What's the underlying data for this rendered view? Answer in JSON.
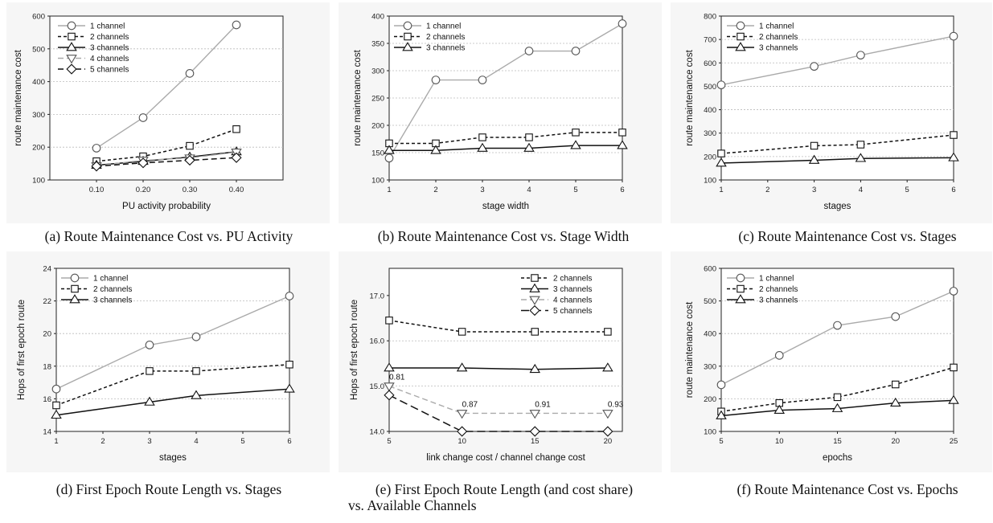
{
  "charts": [
    {
      "type": "line",
      "title": "",
      "caption": "(a) Route Maintenance Cost vs. PU Activity",
      "xlabel": "PU activity probability",
      "ylabel": "route maintenance cost",
      "x_ticks": [
        "0.10",
        "0.20",
        "0.30",
        "0.40"
      ],
      "x_values": [
        0.1,
        0.2,
        0.3,
        0.4
      ],
      "xlim": [
        0.0,
        0.5
      ],
      "ylim": [
        100,
        600
      ],
      "y_ticks": [
        100,
        200,
        300,
        400,
        500,
        600
      ],
      "legend_position": "top-left",
      "grid": "horizontal",
      "series": [
        {
          "name": "1 channel",
          "values": [
            197,
            290,
            425,
            573
          ],
          "marker": "circle",
          "dash": "solid",
          "color": "#aaaaaa"
        },
        {
          "name": "2 channels",
          "values": [
            157,
            172,
            204,
            255
          ],
          "marker": "square",
          "dash": "dotted",
          "color": "#111111"
        },
        {
          "name": "3 channels",
          "values": [
            145,
            157,
            170,
            186
          ],
          "marker": "triangle",
          "dash": "solid",
          "color": "#111111"
        },
        {
          "name": "4 channels",
          "values": [
            143,
            160,
            167,
            185
          ],
          "marker": "triangle-down",
          "dash": "dashed",
          "color": "#aaaaaa"
        },
        {
          "name": "5 channels",
          "values": [
            142,
            152,
            160,
            168
          ],
          "marker": "diamond",
          "dash": "dashed",
          "color": "#111111"
        }
      ]
    },
    {
      "type": "line",
      "title": "",
      "caption": "(b) Route Maintenance Cost vs. Stage Width",
      "xlabel": "stage width",
      "ylabel": "route maintenance cost",
      "x_ticks": [
        "1",
        "2",
        "3",
        "4",
        "5",
        "6"
      ],
      "x_values": [
        1,
        2,
        3,
        4,
        5,
        6
      ],
      "xlim": [
        1,
        6
      ],
      "ylim": [
        100,
        400
      ],
      "y_ticks": [
        100,
        150,
        200,
        250,
        300,
        350,
        400
      ],
      "legend_position": "top-left",
      "grid": "horizontal",
      "series": [
        {
          "name": "1 channel",
          "values": [
            140,
            283,
            283,
            336,
            336,
            386
          ],
          "marker": "circle",
          "dash": "solid",
          "color": "#aaaaaa"
        },
        {
          "name": "2 channels",
          "values": [
            167,
            167,
            178,
            178,
            187,
            187
          ],
          "marker": "square",
          "dash": "dotted",
          "color": "#111111"
        },
        {
          "name": "3 channels",
          "values": [
            154,
            154,
            158,
            158,
            163,
            163
          ],
          "marker": "triangle",
          "dash": "solid",
          "color": "#111111"
        }
      ]
    },
    {
      "type": "line",
      "title": "",
      "caption": "(c) Route Maintenance Cost vs. Stages",
      "xlabel": "stages",
      "ylabel": "route maintenance cost",
      "x_ticks": [
        "1",
        "2",
        "3",
        "4",
        "5",
        "6"
      ],
      "x_values": [
        1,
        3,
        4,
        6
      ],
      "xlim": [
        1,
        6
      ],
      "ylim": [
        100,
        800
      ],
      "y_ticks": [
        100,
        200,
        300,
        400,
        500,
        600,
        700,
        800
      ],
      "legend_position": "top-left",
      "grid": "horizontal",
      "series": [
        {
          "name": "1 channel",
          "values": [
            506,
            585,
            633,
            714
          ],
          "marker": "circle",
          "dash": "solid",
          "color": "#aaaaaa"
        },
        {
          "name": "2 channels",
          "values": [
            213,
            246,
            251,
            292
          ],
          "marker": "square",
          "dash": "dotted",
          "color": "#111111"
        },
        {
          "name": "3 channels",
          "values": [
            172,
            184,
            192,
            195
          ],
          "marker": "triangle",
          "dash": "solid",
          "color": "#111111"
        }
      ]
    },
    {
      "type": "line",
      "title": "",
      "caption": "(d) First Epoch Route Length vs. Stages",
      "xlabel": "stages",
      "ylabel": "Hops of first epoch route",
      "x_ticks": [
        "1",
        "2",
        "3",
        "4",
        "5",
        "6"
      ],
      "x_values": [
        1,
        3,
        4,
        6
      ],
      "xlim": [
        1,
        6
      ],
      "ylim": [
        14,
        24
      ],
      "y_ticks": [
        14,
        16,
        18,
        20,
        22,
        24
      ],
      "legend_position": "top-left",
      "grid": "horizontal",
      "series": [
        {
          "name": "1 channel",
          "values": [
            16.6,
            19.3,
            19.8,
            22.3
          ],
          "marker": "circle",
          "dash": "solid",
          "color": "#aaaaaa"
        },
        {
          "name": "2 channels",
          "values": [
            15.6,
            17.7,
            17.7,
            18.1
          ],
          "marker": "square",
          "dash": "dotted",
          "color": "#111111"
        },
        {
          "name": "3 channels",
          "values": [
            15.0,
            15.8,
            16.2,
            16.6
          ],
          "marker": "triangle",
          "dash": "solid",
          "color": "#111111"
        }
      ]
    },
    {
      "type": "line",
      "title": "",
      "caption": "(e) First Epoch Route Length (and cost share) vs. Available Channels",
      "xlabel": "link change cost / channel change cost",
      "ylabel": "Hops of first epoch route",
      "x_ticks": [
        "5",
        "10",
        "15",
        "20"
      ],
      "x_values": [
        5,
        10,
        15,
        20
      ],
      "xlim": [
        5,
        21
      ],
      "ylim": [
        14.0,
        17.6
      ],
      "y_ticks": [
        14.0,
        15.0,
        16.0,
        17.0
      ],
      "y_tick_labels": [
        "14.0",
        "15.0",
        "16.0",
        "17.0"
      ],
      "legend_position": "top-right",
      "grid": "horizontal",
      "series": [
        {
          "name": "2 channels",
          "values": [
            16.45,
            16.2,
            16.2,
            16.2
          ],
          "marker": "square",
          "dash": "dotted",
          "color": "#111111"
        },
        {
          "name": "3 channels",
          "values": [
            15.4,
            15.4,
            15.37,
            15.4
          ],
          "marker": "triangle",
          "dash": "solid",
          "color": "#111111"
        },
        {
          "name": "4 channels",
          "values": [
            15.0,
            14.4,
            14.4,
            14.4
          ],
          "marker": "triangle-down",
          "dash": "dashed",
          "color": "#aaaaaa"
        },
        {
          "name": "5 channels",
          "values": [
            14.8,
            14.0,
            14.0,
            14.0
          ],
          "marker": "diamond",
          "dash": "longdash",
          "color": "#111111"
        }
      ],
      "annotations": [
        {
          "x": 5,
          "y": 15.0,
          "text": "0.81"
        },
        {
          "x": 10,
          "y": 14.4,
          "text": "0.87"
        },
        {
          "x": 15,
          "y": 14.4,
          "text": "0.91"
        },
        {
          "x": 20,
          "y": 14.4,
          "text": "0.93"
        }
      ]
    },
    {
      "type": "line",
      "title": "",
      "caption": "(f) Route Maintenance Cost vs. Epochs",
      "xlabel": "epochs",
      "ylabel": "route maintenance cost",
      "x_ticks": [
        "5",
        "10",
        "15",
        "20",
        "25"
      ],
      "x_values": [
        5,
        10,
        15,
        20,
        25
      ],
      "xlim": [
        5,
        25
      ],
      "ylim": [
        100,
        600
      ],
      "y_ticks": [
        100,
        200,
        300,
        400,
        500,
        600
      ],
      "legend_position": "top-left",
      "grid": "horizontal",
      "series": [
        {
          "name": "1 channel",
          "values": [
            243,
            333,
            425,
            452,
            530
          ],
          "marker": "circle",
          "dash": "solid",
          "color": "#aaaaaa"
        },
        {
          "name": "2 channels",
          "values": [
            161,
            187,
            205,
            244,
            296
          ],
          "marker": "square",
          "dash": "dotted",
          "color": "#111111"
        },
        {
          "name": "3 channels",
          "values": [
            148,
            165,
            170,
            187,
            195
          ],
          "marker": "triangle",
          "dash": "solid",
          "color": "#111111"
        }
      ]
    }
  ]
}
